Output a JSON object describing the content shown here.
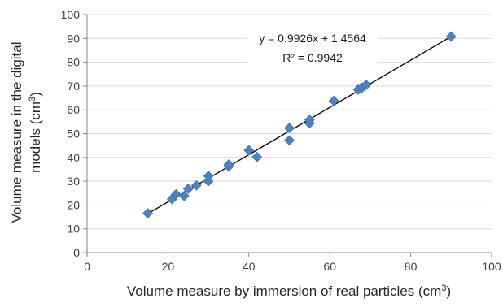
{
  "chart_data": {
    "type": "scatter",
    "xlabel": "Volume measure by immersion of real particles (cm",
    "xlabel_sup": "3",
    "xlabel_close": ")",
    "ylabel_line1": "Volume measure in the digital",
    "ylabel_line2": "models (cm",
    "ylabel_sup": "3",
    "ylabel_close": ")",
    "xlim": [
      0,
      100
    ],
    "ylim": [
      0,
      100
    ],
    "xticks": [
      0,
      20,
      40,
      60,
      80,
      100
    ],
    "yticks": [
      0,
      10,
      20,
      30,
      40,
      50,
      60,
      70,
      80,
      90,
      100
    ],
    "grid": "horizontal",
    "marker": "diamond",
    "colors": {
      "marker": "#4F81BD",
      "trendline": "#000000",
      "grid": "#d9d9d9",
      "axis": "#868686"
    },
    "points": [
      {
        "x": 15,
        "y": 16.5
      },
      {
        "x": 21,
        "y": 22.5
      },
      {
        "x": 22,
        "y": 24.5
      },
      {
        "x": 24,
        "y": 23.8
      },
      {
        "x": 25,
        "y": 26.8
      },
      {
        "x": 27,
        "y": 28.2
      },
      {
        "x": 30,
        "y": 30
      },
      {
        "x": 30,
        "y": 32.2
      },
      {
        "x": 35,
        "y": 36.2
      },
      {
        "x": 35,
        "y": 37
      },
      {
        "x": 40,
        "y": 43
      },
      {
        "x": 42,
        "y": 40.2
      },
      {
        "x": 50,
        "y": 47.2
      },
      {
        "x": 50,
        "y": 52.3
      },
      {
        "x": 55,
        "y": 54.3
      },
      {
        "x": 55,
        "y": 55.8
      },
      {
        "x": 61,
        "y": 63.8
      },
      {
        "x": 67,
        "y": 68.5
      },
      {
        "x": 68,
        "y": 69.3
      },
      {
        "x": 69,
        "y": 70.5
      },
      {
        "x": 90,
        "y": 90.8
      }
    ],
    "trendline": {
      "slope": 0.9926,
      "intercept": 1.4564,
      "x_range": [
        15,
        90
      ]
    },
    "equation": "y = 0.9926x + 1.4564",
    "r_squared": "R² = 0.9942"
  }
}
